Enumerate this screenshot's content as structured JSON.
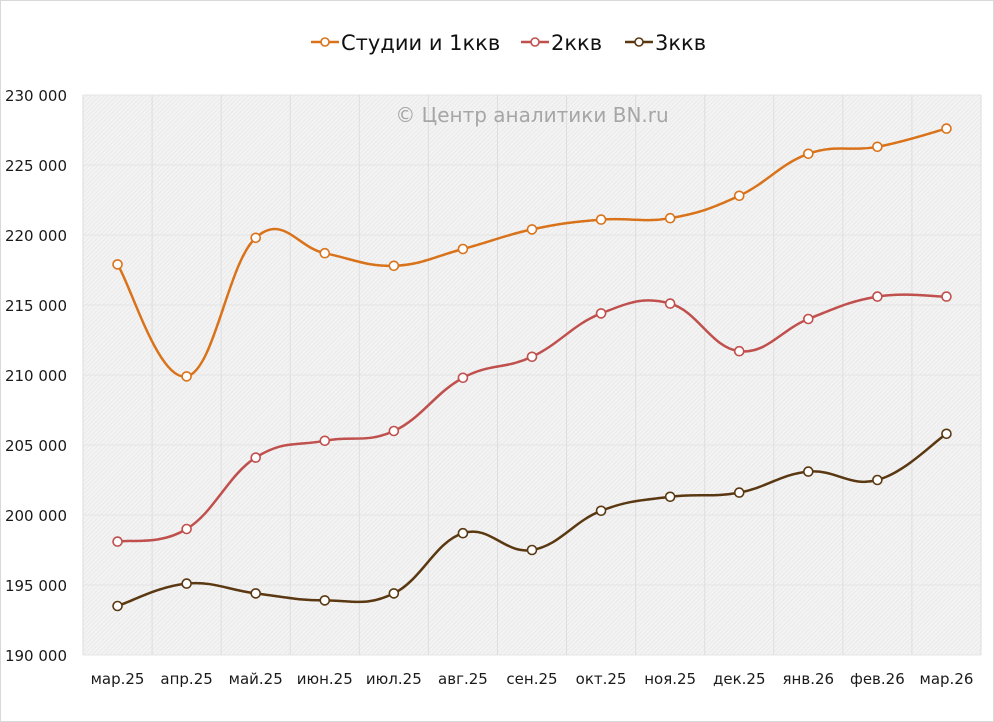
{
  "chart_data": {
    "type": "line",
    "title": "",
    "watermark": "© Центр аналитики BN.ru",
    "xlabel": "",
    "ylabel": "",
    "categories": [
      "мар.25",
      "апр.25",
      "май.25",
      "июн.25",
      "июл.25",
      "авг.25",
      "сен.25",
      "окт.25",
      "ноя.25",
      "дек.25",
      "янв.26",
      "фев.26",
      "мар.26"
    ],
    "ylim": [
      190000,
      230000
    ],
    "yticks": [
      190000,
      195000,
      200000,
      205000,
      210000,
      215000,
      220000,
      225000,
      230000
    ],
    "ytick_labels": [
      "190 000",
      "195 000",
      "200 000",
      "205 000",
      "210 000",
      "215 000",
      "220 000",
      "225 000",
      "230 000"
    ],
    "grid": true,
    "smooth": true,
    "legend_position": "top-center",
    "series": [
      {
        "name": "Студии и 1ккв",
        "color": "#D9731B",
        "values": [
          217900,
          209900,
          219800,
          218700,
          217800,
          219000,
          220400,
          221100,
          221200,
          222800,
          225800,
          226300,
          227600
        ]
      },
      {
        "name": "2ккв",
        "color": "#C0504D",
        "values": [
          198100,
          199000,
          204100,
          205300,
          206000,
          209800,
          211300,
          214400,
          215100,
          211700,
          214000,
          215600,
          215600
        ]
      },
      {
        "name": "3ккв",
        "color": "#5A3812",
        "values": [
          193500,
          195100,
          194400,
          193900,
          194400,
          198700,
          197500,
          200300,
          201300,
          201600,
          203100,
          202500,
          205800
        ]
      }
    ]
  }
}
